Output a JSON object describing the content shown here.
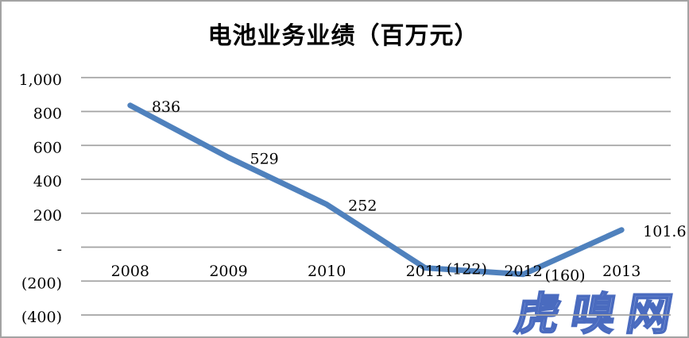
{
  "chart_data": {
    "type": "line",
    "title": "电池业务业绩（百万元）",
    "categories": [
      "2008",
      "2009",
      "2010",
      "2011",
      "2012",
      "2013"
    ],
    "series": [
      {
        "name": "电池业务业绩",
        "values": [
          836,
          529,
          252,
          -122,
          -160,
          101.6
        ],
        "point_labels": [
          "836",
          "529",
          "252",
          "(122)",
          "(160)",
          "101.6"
        ],
        "color": "#4F81BD"
      }
    ],
    "xlabel": "",
    "ylabel": "",
    "ylim": [
      -400,
      1000
    ],
    "y_ticks": [
      {
        "value": 1000,
        "label": "1,000"
      },
      {
        "value": 800,
        "label": "800"
      },
      {
        "value": 600,
        "label": "600"
      },
      {
        "value": 400,
        "label": "400"
      },
      {
        "value": 200,
        "label": "200"
      },
      {
        "value": 0,
        "label": "-"
      },
      {
        "value": -200,
        "label": "(200)"
      },
      {
        "value": -400,
        "label": "(400)"
      }
    ],
    "grid": true,
    "legend_position": "none",
    "gridline_color": "#a3a3a3",
    "text_color": "#000000"
  },
  "watermark": {
    "text": "虎嗅网",
    "fill_color": "#93a9e1",
    "outline_color": "#4a6bbf"
  }
}
